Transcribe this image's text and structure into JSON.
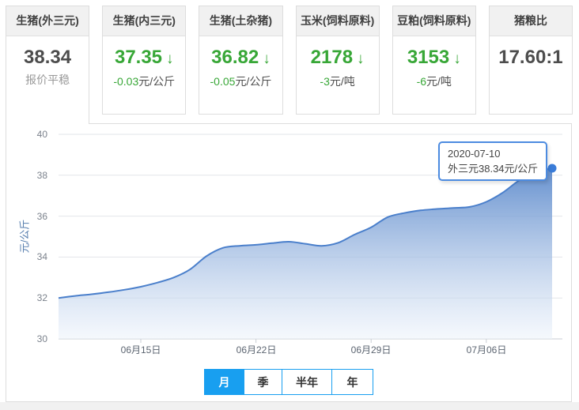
{
  "tabs": {
    "items": [
      {
        "title": "生猪(外三元)",
        "value": "38.34",
        "note": "报价平稳"
      },
      {
        "title": "生猪(内三元)",
        "value": "37.35",
        "arrow": "↓",
        "direction": "down",
        "change": "-0.03",
        "unit": "元/公斤"
      },
      {
        "title": "生猪(土杂猪)",
        "value": "36.82",
        "arrow": "↓",
        "direction": "down",
        "change": "-0.05",
        "unit": "元/公斤"
      },
      {
        "title": "玉米(饲料原料)",
        "value": "2178",
        "arrow": "↓",
        "direction": "down",
        "change": "-3",
        "unit": "元/吨"
      },
      {
        "title": "豆粕(饲料原料)",
        "value": "3153",
        "arrow": "↓",
        "direction": "down",
        "change": "-6",
        "unit": "元/吨"
      },
      {
        "title": "猪粮比",
        "value": "17.60:1"
      }
    ]
  },
  "chart_data": {
    "type": "area",
    "series_name": "外三元",
    "title": "",
    "xlabel": "",
    "ylabel": "元/公斤",
    "ylim": [
      30,
      40
    ],
    "yticks": [
      30,
      32,
      34,
      36,
      38,
      40
    ],
    "grid": true,
    "x_start_date": "2020-06-10",
    "x_end_date": "2020-07-10",
    "x_tick_labels": [
      "06月15日",
      "06月22日",
      "06月29日",
      "07月06日"
    ],
    "x_tick_indices": [
      5,
      12,
      19,
      26
    ],
    "values": [
      32.0,
      32.1,
      32.18,
      32.28,
      32.4,
      32.55,
      32.75,
      33.0,
      33.4,
      34.05,
      34.45,
      34.55,
      34.6,
      34.68,
      34.75,
      34.65,
      34.55,
      34.7,
      35.1,
      35.45,
      35.95,
      36.15,
      36.28,
      36.35,
      36.4,
      36.45,
      36.7,
      37.15,
      37.75,
      38.15,
      38.34
    ],
    "last_point_label": "38.34"
  },
  "tooltip": {
    "date": "2020-07-10",
    "text": "外三元38.34元/公斤"
  },
  "range_buttons": {
    "items": [
      {
        "label": "月",
        "active": true
      },
      {
        "label": "季",
        "active": false
      },
      {
        "label": "半年",
        "active": false
      },
      {
        "label": "年",
        "active": false
      }
    ]
  },
  "colors": {
    "down_green": "#38a737",
    "active_button_blue": "#189ff0",
    "line_blue": "#4a7fcb",
    "marker_blue": "#3a7cd8",
    "value_dark": "#4d4d4d"
  }
}
